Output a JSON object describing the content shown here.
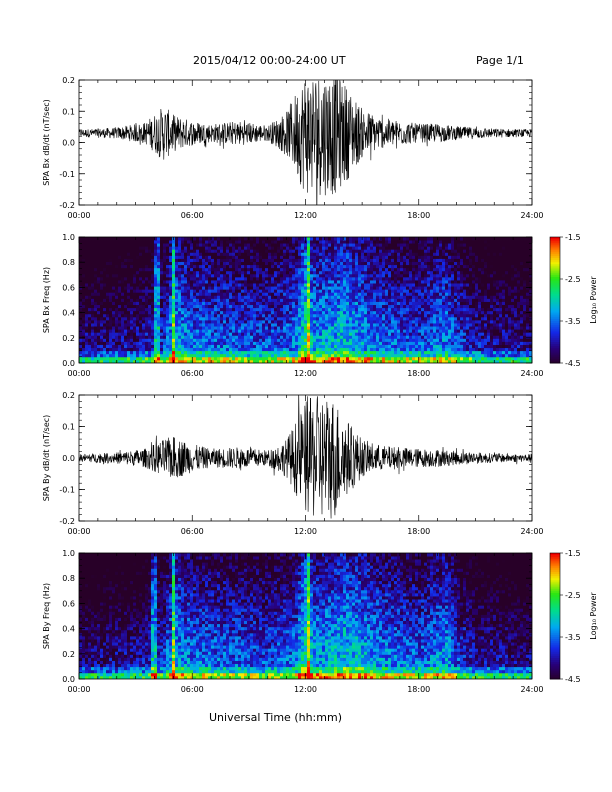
{
  "header": {
    "title": "2015/04/12  00:00-24:00 UT",
    "page": "Page 1/1"
  },
  "xlabel": "Universal Time (hh:mm)",
  "colorbar": {
    "label": "Log₁₀ Power",
    "ticks": [
      "-1.5",
      "-2.5",
      "-3.5",
      "-4.5"
    ],
    "range": [
      -4.5,
      -1.5
    ],
    "scale": "rainbow"
  },
  "chart_data": [
    {
      "type": "line",
      "ylabel": "SPA Bx dB/dt (nT/sec)",
      "ylim": [
        -0.2,
        0.2
      ],
      "yticks": [
        "0.2",
        "0.1",
        "0.0",
        "-0.1",
        "-0.2"
      ],
      "xlim_hours": [
        0,
        24
      ],
      "xticks": [
        "00:00",
        "06:00",
        "12:00",
        "18:00",
        "24:00"
      ],
      "baseline": 0.03,
      "envelope_hours": [
        0,
        2,
        3.5,
        4.5,
        5,
        6,
        7,
        8.5,
        10,
        11,
        12,
        12.5,
        13.5,
        14,
        15,
        16,
        18,
        19,
        20,
        22,
        24
      ],
      "envelope_amplitude": [
        0.012,
        0.018,
        0.035,
        0.09,
        0.06,
        0.04,
        0.03,
        0.04,
        0.025,
        0.07,
        0.2,
        0.2,
        0.2,
        0.17,
        0.08,
        0.05,
        0.03,
        0.03,
        0.022,
        0.015,
        0.012
      ]
    },
    {
      "type": "heatmap",
      "ylabel": "SPA Bx Freq (Hz)",
      "ylim": [
        0.0,
        1.0
      ],
      "yticks": [
        "1.0",
        "0.8",
        "0.6",
        "0.4",
        "0.2",
        "0.0"
      ],
      "xticks": [
        "00:00",
        "06:00",
        "12:00",
        "18:00",
        "24:00"
      ],
      "zlim": [
        -4.5,
        -1.5
      ],
      "activity_hours": [
        0,
        3,
        4.5,
        5,
        6,
        8,
        10,
        11.5,
        12,
        12.5,
        13.5,
        14,
        15,
        16,
        17,
        18,
        19,
        19.5,
        20,
        21,
        24
      ],
      "activity_level": [
        -4.0,
        -3.9,
        -3.6,
        -3.0,
        -3.3,
        -3.4,
        -3.5,
        -3.3,
        -2.6,
        -3.1,
        -3.0,
        -2.9,
        -3.1,
        -3.3,
        -3.4,
        -3.5,
        -3.3,
        -3.2,
        -3.5,
        -3.8,
        -4.0
      ],
      "vertical_streaks_hours": [
        4.15,
        5.0,
        12.15
      ]
    },
    {
      "type": "line",
      "ylabel": "SPA By dB/dt (nT/sec)",
      "ylim": [
        -0.2,
        0.2
      ],
      "yticks": [
        "0.2",
        "0.1",
        "0.0",
        "-0.1",
        "-0.2"
      ],
      "xlim_hours": [
        0,
        24
      ],
      "xticks": [
        "00:00",
        "06:00",
        "12:00",
        "18:00",
        "24:00"
      ],
      "baseline": 0.0,
      "envelope_hours": [
        0,
        2,
        3.5,
        4.5,
        5,
        6,
        7,
        8.5,
        10,
        11,
        12,
        12.5,
        13.5,
        14,
        15,
        16,
        18,
        19,
        20,
        22,
        24
      ],
      "envelope_amplitude": [
        0.012,
        0.018,
        0.03,
        0.06,
        0.07,
        0.045,
        0.03,
        0.035,
        0.025,
        0.06,
        0.18,
        0.2,
        0.2,
        0.14,
        0.06,
        0.04,
        0.03,
        0.028,
        0.022,
        0.015,
        0.012
      ]
    },
    {
      "type": "heatmap",
      "ylabel": "SPA By Freq (Hz)",
      "ylim": [
        0.0,
        1.0
      ],
      "yticks": [
        "1.0",
        "0.8",
        "0.6",
        "0.4",
        "0.2",
        "0.0"
      ],
      "xticks": [
        "00:00",
        "06:00",
        "12:00",
        "18:00",
        "24:00"
      ],
      "zlim": [
        -4.5,
        -1.5
      ],
      "activity_hours": [
        0,
        3,
        4.5,
        5,
        6,
        8,
        10,
        11.5,
        12,
        12.5,
        13.5,
        14,
        15,
        16,
        17,
        18,
        19,
        19.5,
        20,
        21,
        24
      ],
      "activity_level": [
        -4.0,
        -3.9,
        -3.6,
        -3.0,
        -3.3,
        -3.4,
        -3.5,
        -3.3,
        -2.6,
        -3.1,
        -3.0,
        -2.9,
        -3.0,
        -3.2,
        -3.3,
        -3.4,
        -3.2,
        -3.1,
        -3.5,
        -3.8,
        -4.0
      ],
      "vertical_streaks_hours": [
        4.0,
        5.0,
        12.15
      ]
    }
  ]
}
